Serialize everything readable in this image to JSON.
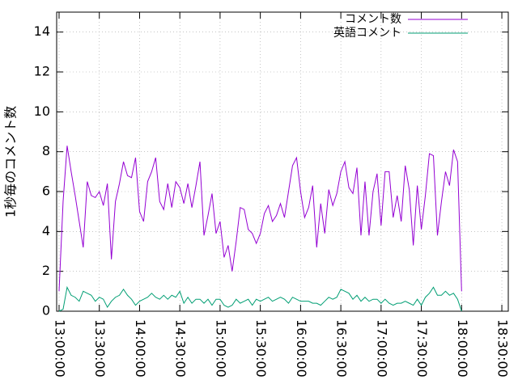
{
  "chart_data": {
    "type": "line",
    "ylabel": "1秒毎のコメント数",
    "x": [
      "13:00:00",
      "13:03:00",
      "13:06:00",
      "13:09:00",
      "13:12:00",
      "13:15:00",
      "13:18:00",
      "13:21:00",
      "13:24:00",
      "13:27:00",
      "13:30:00",
      "13:33:00",
      "13:36:00",
      "13:39:00",
      "13:42:00",
      "13:45:00",
      "13:48:00",
      "13:51:00",
      "13:54:00",
      "13:57:00",
      "14:00:00",
      "14:03:00",
      "14:06:00",
      "14:09:00",
      "14:12:00",
      "14:15:00",
      "14:18:00",
      "14:21:00",
      "14:24:00",
      "14:27:00",
      "14:30:00",
      "14:33:00",
      "14:36:00",
      "14:39:00",
      "14:42:00",
      "14:45:00",
      "14:48:00",
      "14:51:00",
      "14:54:00",
      "14:57:00",
      "15:00:00",
      "15:03:00",
      "15:06:00",
      "15:09:00",
      "15:12:00",
      "15:15:00",
      "15:18:00",
      "15:21:00",
      "15:24:00",
      "15:27:00",
      "15:30:00",
      "15:33:00",
      "15:36:00",
      "15:39:00",
      "15:42:00",
      "15:45:00",
      "15:48:00",
      "15:51:00",
      "15:54:00",
      "15:57:00",
      "16:00:00",
      "16:03:00",
      "16:06:00",
      "16:09:00",
      "16:12:00",
      "16:15:00",
      "16:18:00",
      "16:21:00",
      "16:24:00",
      "16:27:00",
      "16:30:00",
      "16:33:00",
      "16:36:00",
      "16:39:00",
      "16:42:00",
      "16:45:00",
      "16:48:00",
      "16:51:00",
      "16:54:00",
      "16:57:00",
      "17:00:00",
      "17:03:00",
      "17:06:00",
      "17:09:00",
      "17:12:00",
      "17:15:00",
      "17:18:00",
      "17:21:00",
      "17:24:00",
      "17:27:00",
      "17:30:00",
      "17:33:00",
      "17:36:00",
      "17:39:00",
      "17:42:00",
      "17:45:00",
      "17:48:00",
      "17:51:00",
      "17:54:00",
      "17:57:00",
      "18:00:00"
    ],
    "series": [
      {
        "name": "コメント数",
        "color": "#9400d3",
        "values": [
          1.0,
          5.5,
          8.3,
          7.0,
          5.8,
          4.5,
          3.2,
          6.5,
          5.8,
          5.7,
          6.0,
          5.3,
          6.4,
          2.6,
          5.5,
          6.4,
          7.5,
          6.8,
          6.7,
          7.7,
          5.0,
          4.5,
          6.5,
          7.0,
          7.7,
          5.5,
          5.1,
          6.4,
          5.2,
          6.5,
          6.2,
          5.4,
          6.4,
          5.2,
          6.3,
          7.5,
          3.8,
          4.8,
          5.9,
          3.9,
          4.5,
          2.7,
          3.3,
          2.0,
          3.5,
          5.2,
          5.1,
          4.1,
          3.9,
          3.4,
          3.9,
          4.9,
          5.3,
          4.5,
          4.8,
          5.4,
          4.7,
          6.0,
          7.3,
          7.7,
          6.0,
          4.7,
          5.2,
          6.3,
          3.2,
          5.4,
          3.9,
          6.1,
          5.3,
          5.9,
          7.0,
          7.5,
          6.2,
          5.9,
          7.2,
          3.8,
          6.5,
          3.8,
          6.0,
          6.9,
          4.3,
          7.0,
          7.0,
          4.7,
          5.8,
          4.5,
          7.3,
          6.1,
          3.3,
          6.3,
          4.1,
          5.8,
          7.9,
          7.8,
          3.8,
          5.5,
          7.0,
          6.3,
          8.1,
          7.5,
          1.0
        ]
      },
      {
        "name": "英語コメント",
        "color": "#009e73",
        "values": [
          0,
          0.1,
          1.2,
          0.8,
          0.7,
          0.5,
          1.0,
          0.9,
          0.8,
          0.5,
          0.7,
          0.6,
          0.2,
          0.5,
          0.7,
          0.8,
          1.1,
          0.8,
          0.6,
          0.3,
          0.5,
          0.6,
          0.7,
          0.9,
          0.7,
          0.6,
          0.8,
          0.6,
          0.8,
          0.7,
          1.0,
          0.4,
          0.7,
          0.4,
          0.6,
          0.6,
          0.4,
          0.6,
          0.3,
          0.6,
          0.6,
          0.3,
          0.2,
          0.3,
          0.6,
          0.4,
          0.5,
          0.6,
          0.3,
          0.6,
          0.5,
          0.6,
          0.7,
          0.5,
          0.6,
          0.7,
          0.6,
          0.4,
          0.7,
          0.6,
          0.5,
          0.5,
          0.5,
          0.4,
          0.4,
          0.3,
          0.5,
          0.7,
          0.6,
          0.7,
          1.1,
          1.0,
          0.9,
          0.6,
          0.8,
          0.5,
          0.7,
          0.5,
          0.6,
          0.6,
          0.4,
          0.6,
          0.4,
          0.3,
          0.4,
          0.4,
          0.5,
          0.4,
          0.3,
          0.6,
          0.3,
          0.7,
          0.9,
          1.2,
          0.8,
          0.8,
          1.0,
          0.8,
          0.9,
          0.6,
          0
        ]
      }
    ],
    "xlim": [
      "12:58:12",
      "18:34:48"
    ],
    "xticks": [
      "13:00:00",
      "13:30:00",
      "14:00:00",
      "14:30:00",
      "15:00:00",
      "15:30:00",
      "16:00:00",
      "16:30:00",
      "17:00:00",
      "17:30:00",
      "18:00:00",
      "18:30:00"
    ],
    "ylim": [
      0,
      15
    ],
    "yticks": [
      0,
      2,
      4,
      6,
      8,
      10,
      12,
      14
    ],
    "grid": true,
    "legend": "top-right"
  }
}
